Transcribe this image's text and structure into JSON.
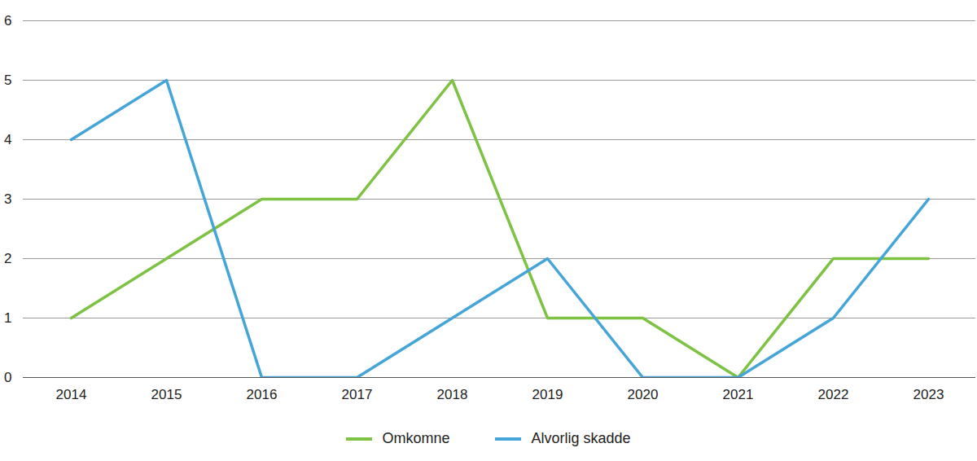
{
  "chart_data": {
    "type": "line",
    "categories": [
      "2014",
      "2015",
      "2016",
      "2017",
      "2018",
      "2019",
      "2020",
      "2021",
      "2022",
      "2023"
    ],
    "series": [
      {
        "name": "Omkomne",
        "color": "#7dc242",
        "values": [
          1,
          2,
          3,
          3,
          5,
          1,
          1,
          0,
          2,
          2
        ]
      },
      {
        "name": "Alvorlig skadde",
        "color": "#45a5d8",
        "values": [
          4,
          5,
          0,
          0,
          1,
          2,
          0,
          0,
          1,
          3
        ]
      }
    ],
    "ylim": [
      0,
      6
    ],
    "yticks": [
      0,
      1,
      2,
      3,
      4,
      5,
      6
    ],
    "grid": true,
    "legend": "bottom"
  }
}
